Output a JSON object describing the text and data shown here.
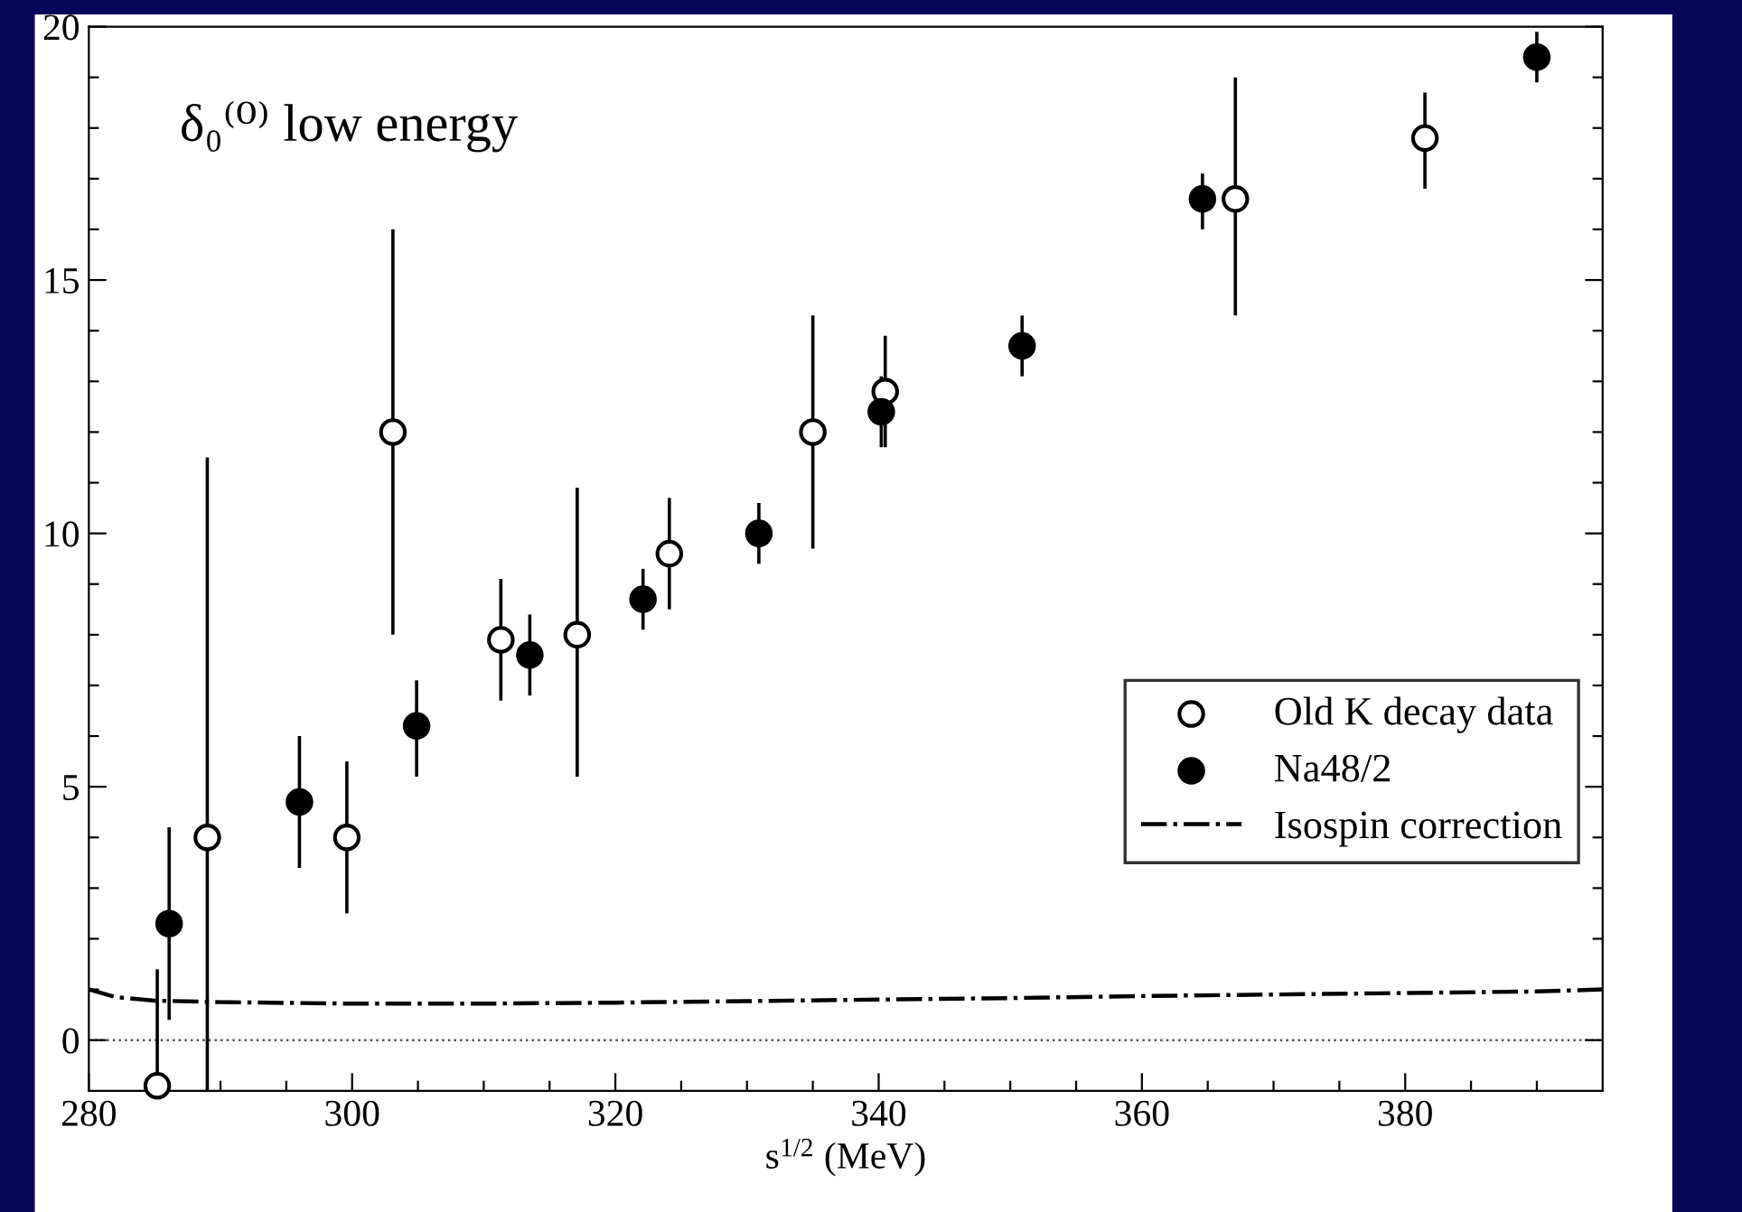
{
  "chart_data": {
    "type": "scatter",
    "title": "δ₀⁽⁰⁾ low energy",
    "xlabel": "s$^{1/2}$ (MeV)",
    "xlim": [
      280,
      395
    ],
    "ylim": [
      -1,
      20
    ],
    "xticks": [
      280,
      {
        "value": 285,
        "label": null
      },
      {
        "value": 290,
        "label": null
      },
      {
        "value": 295,
        "label": null
      },
      300,
      {
        "value": 305,
        "label": null
      },
      {
        "value": 310,
        "label": null
      },
      {
        "value": 315,
        "label": null
      },
      320,
      {
        "value": 325,
        "label": null
      },
      {
        "value": 330,
        "label": null
      },
      {
        "value": 335,
        "label": null
      },
      340,
      {
        "value": 345,
        "label": null
      },
      {
        "value": 350,
        "label": null
      },
      {
        "value": 355,
        "label": null
      },
      360,
      {
        "value": 365,
        "label": null
      },
      {
        "value": 370,
        "label": null
      },
      {
        "value": 375,
        "label": null
      },
      380,
      {
        "value": 385,
        "label": null
      },
      {
        "value": 390,
        "label": null
      }
    ],
    "yticks": [
      0,
      {
        "value": 1,
        "label": null
      },
      {
        "value": 2,
        "label": null
      },
      {
        "value": 3,
        "label": null
      },
      {
        "value": 4,
        "label": null
      },
      5,
      {
        "value": 6,
        "label": null
      },
      {
        "value": 7,
        "label": null
      },
      {
        "value": 8,
        "label": null
      },
      {
        "value": 9,
        "label": null
      },
      10,
      {
        "value": 11,
        "label": null
      },
      {
        "value": 12,
        "label": null
      },
      {
        "value": 13,
        "label": null
      },
      {
        "value": 14,
        "label": null
      },
      15,
      {
        "value": 16,
        "label": null
      },
      {
        "value": 17,
        "label": null
      },
      {
        "value": 18,
        "label": null
      },
      {
        "value": 19,
        "label": null
      },
      20
    ],
    "grid": false,
    "legend": "right",
    "marker": "circle",
    "series": [
      {
        "name": "Old K decay data",
        "color": "#ffffff",
        "x": [
          285.2,
          289.0,
          299.6,
          303.1,
          311.3,
          317.1,
          324.1,
          335.0,
          340.5,
          367.1,
          381.5
        ],
        "values": [
          -0.9,
          4.0,
          4.0,
          12.0,
          7.9,
          8.0,
          9.6,
          12.0,
          12.8,
          16.6,
          17.8
        ],
        "errors": [
          [
            -1,
            1.4
          ],
          [
            -1,
            11.5
          ],
          [
            2.5,
            5.5
          ],
          [
            8.0,
            16.0
          ],
          [
            6.7,
            9.1
          ],
          [
            5.2,
            10.9
          ],
          [
            8.5,
            10.7
          ],
          [
            9.7,
            14.3
          ],
          [
            11.7,
            13.9
          ],
          [
            14.3,
            19.0
          ],
          [
            16.8,
            18.7
          ]
        ]
      },
      {
        "name": "Na48/2",
        "color": "#000000",
        "x": [
          286.1,
          296.0,
          304.9,
          313.5,
          322.1,
          330.9,
          340.2,
          350.9,
          364.6,
          390.0
        ],
        "values": [
          2.3,
          4.7,
          6.2,
          7.6,
          8.7,
          10.0,
          12.4,
          13.7,
          16.6,
          19.4
        ],
        "errors": [
          [
            0.4,
            4.2
          ],
          [
            3.4,
            6.0
          ],
          [
            5.2,
            7.1
          ],
          [
            6.8,
            8.4
          ],
          [
            8.1,
            9.3
          ],
          [
            9.4,
            10.6
          ],
          [
            11.7,
            13.1
          ],
          [
            13.1,
            14.3
          ],
          [
            16.0,
            17.1
          ],
          [
            18.9,
            19.9
          ]
        ]
      },
      {
        "name": "Isospin correction",
        "type": "line",
        "color": "#000000",
        "line_style": "dashdot",
        "marker": "none",
        "x": [
          280,
          282,
          285,
          290,
          300,
          310,
          320,
          330,
          340,
          350,
          360,
          370,
          380,
          390,
          395
        ],
        "values": [
          1.0,
          0.85,
          0.78,
          0.75,
          0.72,
          0.72,
          0.74,
          0.77,
          0.8,
          0.83,
          0.87,
          0.9,
          0.93,
          0.96,
          1.0
        ]
      }
    ],
    "ref_lines": [
      {
        "axis": "y",
        "value": 0,
        "color": "#555555",
        "line_style": "dotted"
      }
    ]
  }
}
